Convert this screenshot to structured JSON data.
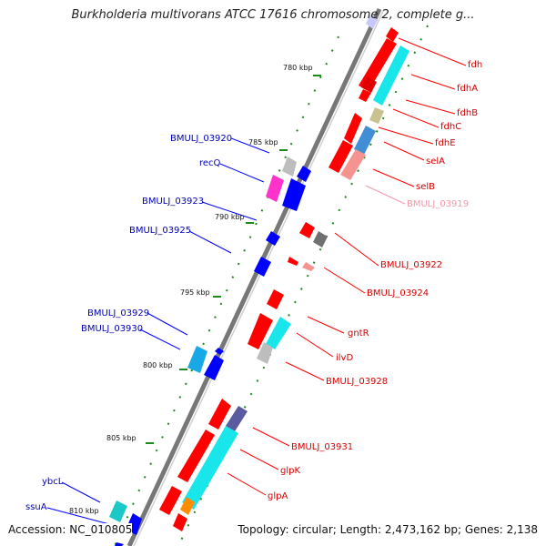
{
  "title": "Burkholderia multivorans ATCC 17616 chromosome 2, complete g...",
  "footer": {
    "accession": "Accession: NC_010805",
    "summary": "Topology: circular; Length: 2,473,162 bp; Genes: 2,138"
  },
  "kbp_ticks": [
    "780 kbp",
    "785 kbp",
    "790 kbp",
    "795 kbp",
    "800 kbp",
    "805 kbp",
    "810 kbp"
  ],
  "genes_right": [
    "fdh",
    "fdhA",
    "fdhB",
    "fdhC",
    "fdhE",
    "selA",
    "selB",
    "BMULJ_03919",
    "BMULJ_03922",
    "BMULJ_03924",
    "gntR",
    "ilvD",
    "BMULJ_03928",
    "BMULJ_03931",
    "glpK",
    "glpA"
  ],
  "genes_left": [
    "BMULJ_03920",
    "recQ",
    "BMULJ_03923",
    "BMULJ_03925",
    "BMULJ_03929",
    "BMULJ_03930",
    "ybcL",
    "ssuA"
  ],
  "colors": {
    "forward": "#ff0000",
    "reverse": "#0000ff",
    "pseudo": "#f19aa8",
    "label_red": "#d40000",
    "label_blue": "#0000b4",
    "backbone": "#777777",
    "tick_dots": "#1a8a1a"
  }
}
